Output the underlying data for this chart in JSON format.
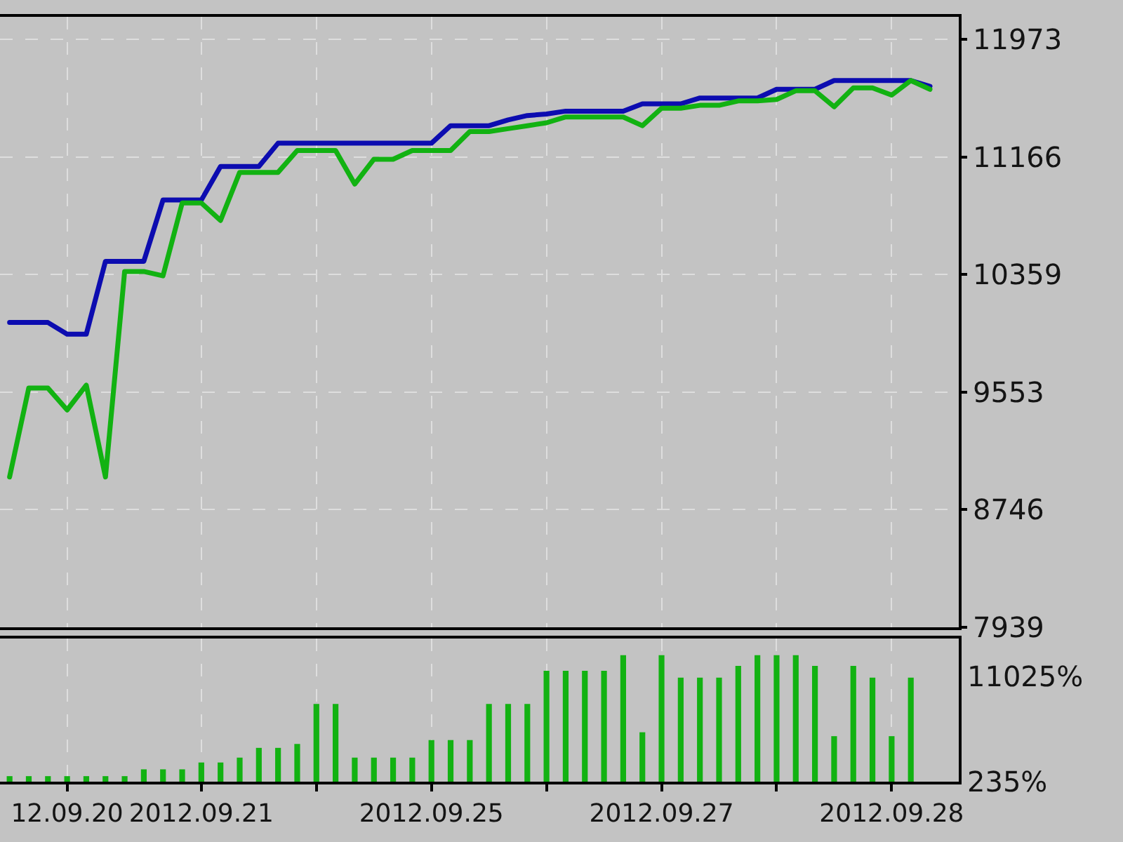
{
  "chart_data": [
    {
      "type": "line",
      "categories": [
        null,
        null,
        null,
        "12.09.20",
        null,
        null,
        null,
        null,
        null,
        null,
        "2012.09.21",
        null,
        null,
        null,
        null,
        null,
        null,
        null,
        null,
        null,
        null,
        null,
        "2012.09.25",
        null,
        null,
        null,
        null,
        null,
        null,
        null,
        null,
        null,
        null,
        null,
        "2012.09.27",
        null,
        null,
        null,
        null,
        null,
        null,
        null,
        null,
        null,
        null,
        null,
        "2012.09.28",
        null,
        null,
        null
      ],
      "series": [
        {
          "color": "#0c0cb0",
          "values": [
            10030,
            10030,
            10030,
            9950,
            9950,
            10450,
            10450,
            10450,
            10870,
            10870,
            10870,
            11100,
            11100,
            11100,
            11260,
            11260,
            11260,
            11260,
            11260,
            11260,
            11260,
            11260,
            11260,
            11380,
            11380,
            11380,
            11420,
            11450,
            11460,
            11480,
            11480,
            11480,
            11480,
            11530,
            11530,
            11530,
            11570,
            11570,
            11570,
            11570,
            11630,
            11630,
            11630,
            11690,
            11690,
            11690,
            11690,
            11690,
            11650,
            null
          ]
        },
        {
          "color": "#12b212",
          "values": [
            8970,
            9580,
            9580,
            9430,
            9600,
            8970,
            10380,
            10380,
            10350,
            10850,
            10850,
            10730,
            11060,
            11060,
            11060,
            11210,
            11210,
            11210,
            10980,
            11150,
            11150,
            11210,
            11210,
            11210,
            11340,
            11340,
            11360,
            11380,
            11400,
            11440,
            11440,
            11440,
            11440,
            11380,
            11500,
            11500,
            11520,
            11520,
            11550,
            11550,
            11560,
            11620,
            11620,
            11510,
            11640,
            11640,
            11590,
            11690,
            11630,
            null
          ]
        }
      ],
      "ylim": [
        7939,
        12127
      ],
      "yticks": [
        7939,
        8746,
        9553,
        10359,
        11166,
        11973
      ],
      "grid": true,
      "tick_labels": "y"
    },
    {
      "type": "bar",
      "categories": [
        null,
        null,
        null,
        "12.09.20",
        null,
        null,
        null,
        null,
        null,
        null,
        "2012.09.21",
        null,
        null,
        null,
        null,
        null,
        null,
        null,
        null,
        null,
        null,
        null,
        "2012.09.25",
        null,
        null,
        null,
        null,
        null,
        null,
        null,
        null,
        null,
        null,
        null,
        "2012.09.27",
        null,
        null,
        null,
        null,
        null,
        null,
        null,
        null,
        null,
        null,
        null,
        "2012.09.28",
        null,
        null,
        null
      ],
      "values": [
        800,
        800,
        800,
        800,
        800,
        800,
        800,
        1500,
        1500,
        1500,
        2200,
        2200,
        2700,
        3700,
        3700,
        4100,
        8200,
        8200,
        2700,
        2700,
        2700,
        2700,
        4500,
        4500,
        4500,
        8200,
        8200,
        8200,
        11600,
        11600,
        11600,
        11600,
        13200,
        5300,
        13200,
        10900,
        10900,
        10900,
        12100,
        13200,
        13200,
        13200,
        12100,
        4900,
        12100,
        10900,
        4900,
        10900,
        null,
        null
      ],
      "color": "#12b212",
      "ylim": [
        235,
        14910
      ],
      "yticks": [
        {
          "value": 235,
          "label": "235%"
        },
        {
          "value": 11025,
          "label": "11025%"
        }
      ],
      "grid": "x"
    }
  ]
}
